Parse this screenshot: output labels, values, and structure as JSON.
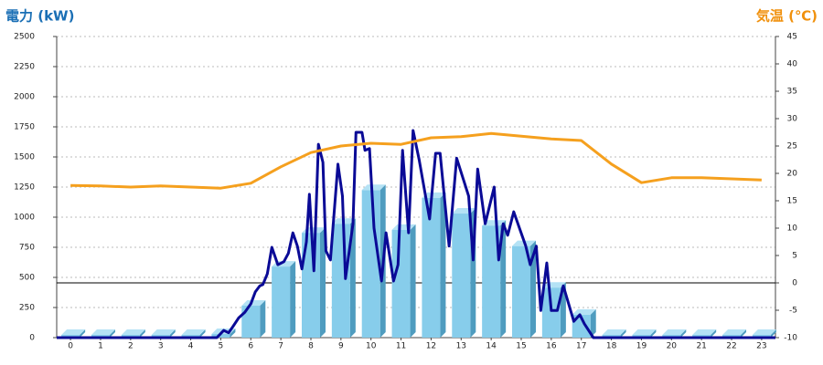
{
  "chart_data": {
    "type": "bar",
    "ylabel": "電力 (kW)",
    "y2label": "気温 (℃)",
    "xlim": [
      -0.46,
      23.46
    ],
    "xticks": [
      0,
      1,
      2,
      3,
      4,
      5,
      6,
      7,
      8,
      9,
      10,
      11,
      12,
      13,
      14,
      15,
      16,
      17,
      18,
      19,
      20,
      21,
      22,
      23
    ],
    "ylim": [
      0,
      2500
    ],
    "yticks": [
      0,
      250,
      500,
      750,
      1000,
      1250,
      1500,
      1750,
      2000,
      2250,
      2500
    ],
    "y2lim": [
      -10,
      45
    ],
    "y2ticks": [
      -10,
      -5,
      0,
      5,
      10,
      15,
      20,
      25,
      30,
      35,
      40,
      45
    ],
    "y2_reference_line": 0,
    "grid": true,
    "series": [
      {
        "type": "bar",
        "color": "#87cdeb",
        "x": [
          0,
          1,
          2,
          3,
          4,
          5,
          6,
          7,
          8,
          9,
          10,
          11,
          12,
          13,
          14,
          15,
          16,
          17,
          18,
          19,
          20,
          21,
          22,
          23
        ],
        "values": [
          0,
          0,
          0,
          0,
          0,
          30,
          265,
          590,
          870,
          945,
          1225,
          895,
          1160,
          1030,
          930,
          760,
          415,
          190,
          0,
          0,
          0,
          0,
          0,
          0
        ]
      },
      {
        "type": "line",
        "color": "#0a0a96",
        "x": [
          -0.46,
          4.87,
          5.1,
          5.26,
          5.4,
          5.6,
          5.8,
          6.0,
          6.15,
          6.3,
          6.4,
          6.55,
          6.7,
          6.9,
          7.1,
          7.25,
          7.4,
          7.55,
          7.7,
          7.85,
          7.95,
          8.1,
          8.25,
          8.4,
          8.5,
          8.65,
          8.9,
          9.05,
          9.15,
          9.4,
          9.5,
          9.7,
          9.8,
          9.95,
          10.1,
          10.35,
          10.5,
          10.75,
          10.9,
          11.05,
          11.25,
          11.4,
          11.6,
          11.95,
          12.15,
          12.3,
          12.6,
          12.85,
          13.25,
          13.4,
          13.55,
          13.8,
          14.1,
          14.25,
          14.4,
          14.55,
          14.75,
          15.15,
          15.3,
          15.5,
          15.65,
          15.85,
          16.0,
          16.2,
          16.4,
          16.75,
          16.95,
          17.1,
          17.4,
          23.46
        ],
        "values": [
          0,
          0,
          60,
          40,
          90,
          165,
          210,
          280,
          380,
          430,
          440,
          530,
          750,
          605,
          630,
          700,
          870,
          760,
          570,
          795,
          1190,
          555,
          1605,
          1455,
          720,
          645,
          1440,
          1175,
          490,
          945,
          1705,
          1705,
          1555,
          1570,
          910,
          470,
          870,
          470,
          605,
          1555,
          870,
          1720,
          1480,
          985,
          1530,
          1530,
          760,
          1490,
          1175,
          645,
          1400,
          945,
          1250,
          645,
          945,
          850,
          1045,
          760,
          605,
          760,
          225,
          620,
          225,
          225,
          430,
          135,
          190,
          115,
          0,
          0
        ]
      },
      {
        "type": "line",
        "axis": "y2",
        "color": "#f5a01e",
        "x": [
          0,
          1,
          2,
          3,
          4,
          5,
          6,
          7,
          8,
          9,
          10,
          11,
          12,
          13,
          14,
          15,
          16,
          17,
          18,
          19,
          20,
          21,
          22,
          23
        ],
        "values": [
          17.8,
          17.7,
          17.5,
          17.7,
          17.5,
          17.3,
          18.2,
          21.2,
          23.8,
          25,
          25.5,
          25.3,
          26.5,
          26.7,
          27.3,
          26.8,
          26.3,
          26,
          21.7,
          18.3,
          19.2,
          19.2,
          19,
          18.8
        ]
      }
    ]
  }
}
